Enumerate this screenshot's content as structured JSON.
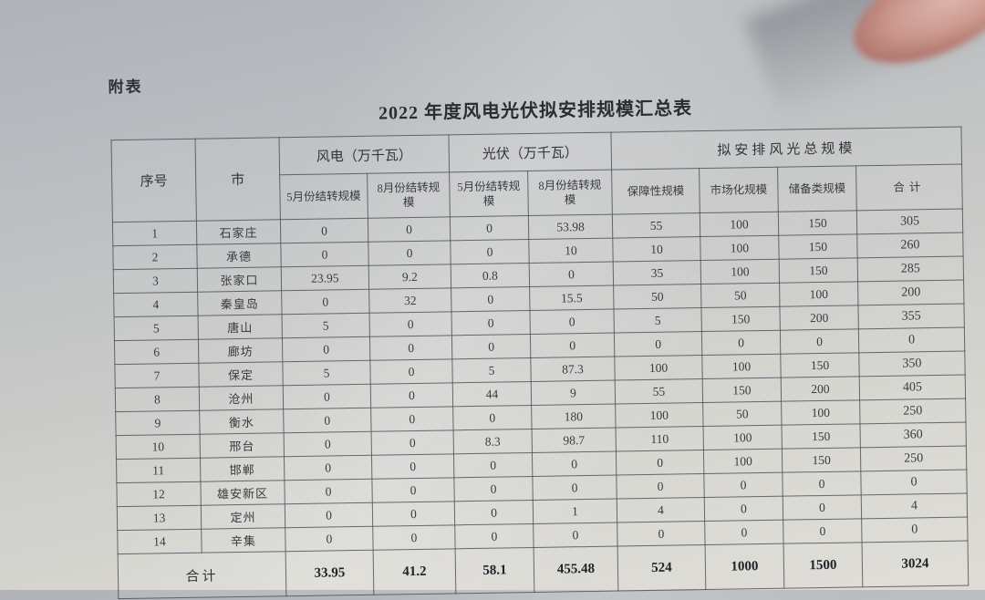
{
  "document": {
    "corner_label": "附表",
    "title": "2022 年度风电光伏拟安排规模汇总表"
  },
  "table": {
    "headers": {
      "col_index": "序号",
      "col_city": "市",
      "group_wind": "风电（万千瓦）",
      "group_pv": "光伏（万千瓦）",
      "group_total": "拟安排风光总规模",
      "sub_wind_may": "5月份结转规模",
      "sub_wind_aug": "8月份结转规模",
      "sub_pv_may": "5月份结转规模",
      "sub_pv_aug": "8月份结转规模",
      "sub_guaranteed": "保障性规模",
      "sub_market": "市场化规模",
      "sub_reserve": "储备类规模",
      "sub_sum": "合计"
    },
    "rows": [
      {
        "no": "1",
        "city": "石家庄",
        "wind_may": "0",
        "wind_aug": "0",
        "pv_may": "0",
        "pv_aug": "53.98",
        "guaranteed": "55",
        "market": "100",
        "reserve": "150",
        "sum": "305"
      },
      {
        "no": "2",
        "city": "承德",
        "wind_may": "0",
        "wind_aug": "0",
        "pv_may": "0",
        "pv_aug": "10",
        "guaranteed": "10",
        "market": "100",
        "reserve": "150",
        "sum": "260"
      },
      {
        "no": "3",
        "city": "张家口",
        "wind_may": "23.95",
        "wind_aug": "9.2",
        "pv_may": "0.8",
        "pv_aug": "0",
        "guaranteed": "35",
        "market": "100",
        "reserve": "150",
        "sum": "285"
      },
      {
        "no": "4",
        "city": "秦皇岛",
        "wind_may": "0",
        "wind_aug": "32",
        "pv_may": "0",
        "pv_aug": "15.5",
        "guaranteed": "50",
        "market": "50",
        "reserve": "100",
        "sum": "200"
      },
      {
        "no": "5",
        "city": "唐山",
        "wind_may": "5",
        "wind_aug": "0",
        "pv_may": "0",
        "pv_aug": "0",
        "guaranteed": "5",
        "market": "150",
        "reserve": "200",
        "sum": "355"
      },
      {
        "no": "6",
        "city": "廊坊",
        "wind_may": "0",
        "wind_aug": "0",
        "pv_may": "0",
        "pv_aug": "0",
        "guaranteed": "0",
        "market": "0",
        "reserve": "0",
        "sum": "0"
      },
      {
        "no": "7",
        "city": "保定",
        "wind_may": "5",
        "wind_aug": "0",
        "pv_may": "5",
        "pv_aug": "87.3",
        "guaranteed": "100",
        "market": "100",
        "reserve": "150",
        "sum": "350"
      },
      {
        "no": "8",
        "city": "沧州",
        "wind_may": "0",
        "wind_aug": "0",
        "pv_may": "44",
        "pv_aug": "9",
        "guaranteed": "55",
        "market": "150",
        "reserve": "200",
        "sum": "405"
      },
      {
        "no": "9",
        "city": "衡水",
        "wind_may": "0",
        "wind_aug": "0",
        "pv_may": "0",
        "pv_aug": "180",
        "guaranteed": "100",
        "market": "50",
        "reserve": "100",
        "sum": "250"
      },
      {
        "no": "10",
        "city": "邢台",
        "wind_may": "0",
        "wind_aug": "0",
        "pv_may": "8.3",
        "pv_aug": "98.7",
        "guaranteed": "110",
        "market": "100",
        "reserve": "150",
        "sum": "360"
      },
      {
        "no": "11",
        "city": "邯郸",
        "wind_may": "0",
        "wind_aug": "0",
        "pv_may": "0",
        "pv_aug": "0",
        "guaranteed": "0",
        "market": "100",
        "reserve": "150",
        "sum": "250"
      },
      {
        "no": "12",
        "city": "雄安新区",
        "wind_may": "0",
        "wind_aug": "0",
        "pv_may": "0",
        "pv_aug": "0",
        "guaranteed": "0",
        "market": "0",
        "reserve": "0",
        "sum": "0"
      },
      {
        "no": "13",
        "city": "定州",
        "wind_may": "0",
        "wind_aug": "0",
        "pv_may": "0",
        "pv_aug": "1",
        "guaranteed": "4",
        "market": "0",
        "reserve": "0",
        "sum": "4"
      },
      {
        "no": "14",
        "city": "辛集",
        "wind_may": "0",
        "wind_aug": "0",
        "pv_may": "0",
        "pv_aug": "0",
        "guaranteed": "0",
        "market": "0",
        "reserve": "0",
        "sum": "0"
      }
    ],
    "total_row": {
      "label": "合计",
      "wind_may": "33.95",
      "wind_aug": "41.2",
      "pv_may": "58.1",
      "pv_aug": "455.48",
      "guaranteed": "524",
      "market": "1000",
      "reserve": "1500",
      "sum": "3024"
    }
  },
  "photo": {
    "paper_color_dark": "#afb3b9",
    "paper_color_light": "#dedcd4",
    "ink_color": "#393a40",
    "finger_color": "#cb978d"
  }
}
